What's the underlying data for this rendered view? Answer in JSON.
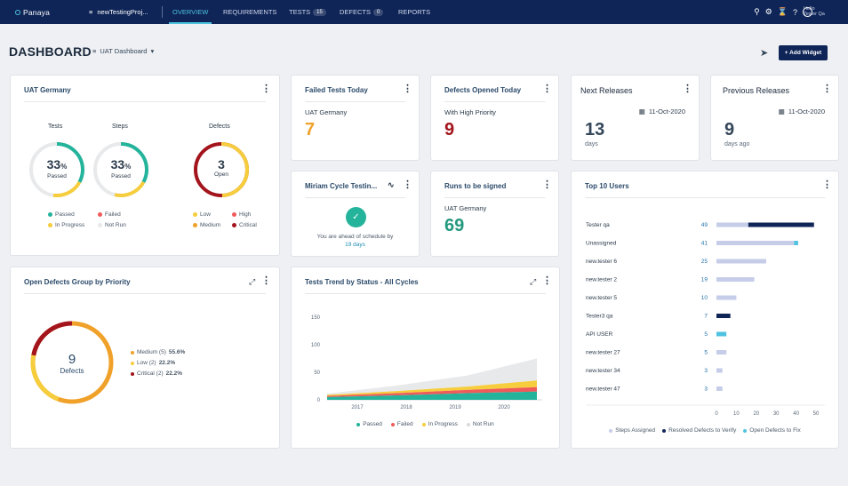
{
  "topbar": {
    "logo": "Panaya",
    "project": "newTestingProj...",
    "tabs": [
      {
        "label": "OVERVIEW"
      },
      {
        "label": "REQUIREMENTS"
      },
      {
        "label": "TESTS",
        "badge": "15"
      },
      {
        "label": "DEFECTS",
        "badge": "0"
      },
      {
        "label": "REPORTS"
      }
    ],
    "user_hello": "Hello",
    "user_name": "Tester Qa"
  },
  "header": {
    "title": "DASHBOARD",
    "dashboard_select": "UAT Dashboard",
    "add_widget": "+ Add Widget"
  },
  "uat": {
    "title": "UAT Germany",
    "tests_label": "Tests",
    "steps_label": "Steps",
    "defects_label": "Defects",
    "tests_value": "33",
    "tests_unit": "%",
    "tests_caption": "Passed",
    "steps_value": "33",
    "steps_unit": "%",
    "steps_caption": "Passed",
    "defects_value": "3",
    "defects_caption": "Open",
    "legend_left": [
      "Passed",
      "Failed",
      "In Progress",
      "Not Run"
    ],
    "legend_right": [
      "Low",
      "High",
      "Medium",
      "Critical"
    ]
  },
  "failed_today": {
    "title": "Failed Tests Today",
    "subtitle": "UAT Germany",
    "value": "7"
  },
  "defects_today": {
    "title": "Defects Opened Today",
    "subtitle": "With High Priority",
    "value": "9"
  },
  "next_releases": {
    "title": "Next Releases",
    "date": "11-Oct-2020",
    "value": "13",
    "unit": "days"
  },
  "prev_releases": {
    "title": "Previous Releases",
    "date": "11-Oct-2020",
    "value": "9",
    "unit": "days ago"
  },
  "miriam": {
    "title": "Miriam Cycle Testin...",
    "message": "You are ahead of schedule by",
    "days": "19 days"
  },
  "runs": {
    "title": "Runs to be signed",
    "subtitle": "UAT Germany",
    "value": "69"
  },
  "open_defects": {
    "title": "Open Defects Group by Priority",
    "center_value": "9",
    "center_label": "Defects",
    "items": [
      {
        "label": "Medium (5)",
        "pct": "55.6%",
        "color": "#f0a12a"
      },
      {
        "label": "Low (2)",
        "pct": "22.2%",
        "color": "#f5cd3d"
      },
      {
        "label": "Critical (2)",
        "pct": "22.2%",
        "color": "#a3141c"
      }
    ]
  },
  "trend": {
    "title": "Tests Trend by Status - All Cycles",
    "legend": [
      "Passed",
      "Failed",
      "In Progress",
      "Not Run"
    ]
  },
  "top_users": {
    "title": "Top 10 Users",
    "legend": [
      "Steps Assigned",
      "Resolved Defects to Verify",
      "Open Defects to Fix"
    ]
  },
  "chart_data": [
    {
      "type": "area",
      "title": "Tests Trend by Status - All Cycles",
      "x": [
        "2017",
        "2018",
        "2019",
        "2020"
      ],
      "ylim": [
        0,
        150
      ],
      "yticks": [
        0,
        50,
        100,
        150
      ],
      "series": [
        {
          "name": "Passed",
          "values": [
            5,
            8,
            12,
            15
          ],
          "color": "#24b39b"
        },
        {
          "name": "Failed",
          "values": [
            2,
            4,
            6,
            8
          ],
          "color": "#ef5a5a"
        },
        {
          "name": "In Progress",
          "values": [
            2,
            4,
            6,
            12
          ],
          "color": "#f5cd3d"
        },
        {
          "name": "Not Run",
          "values": [
            2,
            10,
            20,
            40
          ],
          "color": "#e8e9eb"
        }
      ]
    },
    {
      "type": "bar",
      "title": "Top 10 Users",
      "categories": [
        "Tester qa",
        "Unassigned",
        "new.tester 6",
        "new.tester 2",
        "new.tester 5",
        "Tester3 qa",
        "API USER",
        "new.tester 27",
        "new.tester 34",
        "new.tester 47"
      ],
      "totals": [
        "49",
        "41",
        "25",
        "19",
        "10",
        "7",
        "5",
        "5",
        "3",
        "3"
      ],
      "xlim": [
        0,
        50
      ],
      "xticks": [
        "0",
        "10",
        "20",
        "30",
        "40",
        "50"
      ],
      "series": [
        {
          "name": "Steps Assigned",
          "values": [
            16,
            39,
            25,
            19,
            10,
            0,
            0,
            5,
            3,
            3
          ],
          "color": "#c5cde8"
        },
        {
          "name": "Resolved Defects to Verify",
          "values": [
            33,
            0,
            0,
            0,
            0,
            7,
            0,
            0,
            0,
            0
          ],
          "color": "#0f2557"
        },
        {
          "name": "Open Defects to Fix",
          "values": [
            0,
            2,
            0,
            0,
            0,
            0,
            5,
            0,
            0,
            0
          ],
          "color": "#4ec3e0"
        }
      ]
    }
  ]
}
